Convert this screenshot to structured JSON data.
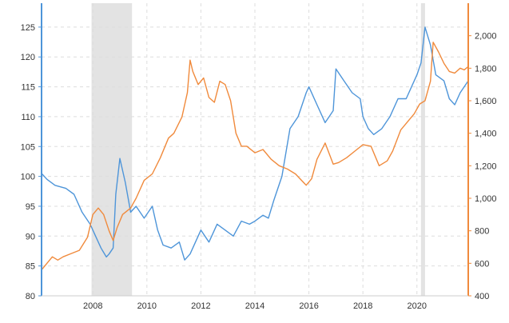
{
  "chart_data": {
    "type": "line",
    "title": "",
    "grid": true,
    "legend": "none",
    "x_axis": {
      "range": [
        2006.1,
        2021.9
      ],
      "ticks": [
        2008,
        2010,
        2012,
        2014,
        2016,
        2018,
        2020
      ],
      "tick_labels": [
        "2008",
        "2010",
        "2012",
        "2014",
        "2016",
        "2018",
        "2020"
      ]
    },
    "y_left": {
      "range": [
        80,
        129
      ],
      "ticks": [
        80,
        85,
        90,
        95,
        100,
        105,
        110,
        115,
        120,
        125
      ],
      "tick_labels": [
        "80",
        "85",
        "90",
        "95",
        "100",
        "105",
        "110",
        "115",
        "120",
        "125"
      ],
      "color": "#4e95d9"
    },
    "y_right": {
      "range": [
        400,
        2200
      ],
      "ticks": [
        400,
        600,
        800,
        1000,
        1200,
        1400,
        1600,
        1800,
        2000
      ],
      "tick_labels": [
        "400",
        "600",
        "800",
        "1,000",
        "1,200",
        "1,400",
        "1,600",
        "1,800",
        "2,000"
      ],
      "color": "#f08a3c"
    },
    "shaded_periods": [
      {
        "start": 2007.95,
        "end": 2009.45
      },
      {
        "start": 2020.15,
        "end": 2020.3
      }
    ],
    "series": [
      {
        "axis": "left",
        "color": "#4e95d9",
        "x": [
          2006.1,
          2006.3,
          2006.6,
          2007.0,
          2007.3,
          2007.6,
          2007.9,
          2008.1,
          2008.3,
          2008.5,
          2008.6,
          2008.75,
          2008.85,
          2009.0,
          2009.2,
          2009.4,
          2009.6,
          2009.9,
          2010.2,
          2010.4,
          2010.6,
          2010.9,
          2011.2,
          2011.4,
          2011.6,
          2011.8,
          2012.0,
          2012.3,
          2012.6,
          2012.9,
          2013.2,
          2013.5,
          2013.8,
          2014.0,
          2014.3,
          2014.5,
          2014.7,
          2015.0,
          2015.3,
          2015.6,
          2015.9,
          2016.0,
          2016.3,
          2016.6,
          2016.9,
          2017.0,
          2017.3,
          2017.6,
          2017.9,
          2018.0,
          2018.2,
          2018.4,
          2018.7,
          2019.0,
          2019.3,
          2019.6,
          2019.9,
          2020.0,
          2020.15,
          2020.3,
          2020.5,
          2020.7,
          2021.0,
          2021.2,
          2021.4,
          2021.6,
          2021.75,
          2021.9
        ],
        "values": [
          100.5,
          99.5,
          98.5,
          98,
          97,
          94,
          92,
          90,
          88,
          86.5,
          87,
          88,
          97,
          103,
          99,
          94,
          95,
          93,
          95,
          91,
          88.5,
          88,
          89,
          86,
          87,
          89,
          91,
          89,
          92,
          91,
          90,
          92.5,
          92,
          92.5,
          93.5,
          93,
          96,
          100,
          108,
          110,
          114,
          115,
          112,
          109,
          111,
          118,
          116,
          114,
          113,
          110,
          108,
          107,
          108,
          110,
          113,
          113,
          116,
          117,
          119,
          125,
          122,
          117,
          116,
          113,
          112,
          114,
          115,
          116
        ]
      },
      {
        "axis": "right",
        "color": "#f08a3c",
        "x": [
          2006.1,
          2006.3,
          2006.5,
          2006.7,
          2006.9,
          2007.2,
          2007.5,
          2007.8,
          2008.0,
          2008.2,
          2008.4,
          2008.6,
          2008.75,
          2008.9,
          2009.1,
          2009.4,
          2009.6,
          2009.9,
          2010.2,
          2010.5,
          2010.8,
          2011.0,
          2011.3,
          2011.5,
          2011.6,
          2011.7,
          2011.9,
          2012.1,
          2012.3,
          2012.5,
          2012.7,
          2012.9,
          2013.1,
          2013.3,
          2013.5,
          2013.7,
          2014.0,
          2014.3,
          2014.6,
          2014.9,
          2015.2,
          2015.5,
          2015.9,
          2016.1,
          2016.3,
          2016.6,
          2016.9,
          2017.1,
          2017.4,
          2017.7,
          2018.0,
          2018.3,
          2018.6,
          2018.9,
          2019.1,
          2019.4,
          2019.7,
          2019.9,
          2020.1,
          2020.3,
          2020.5,
          2020.6,
          2020.8,
          2021.0,
          2021.2,
          2021.4,
          2021.6,
          2021.75,
          2021.9
        ],
        "values": [
          560,
          600,
          640,
          620,
          640,
          660,
          680,
          760,
          900,
          940,
          900,
          800,
          740,
          820,
          900,
          940,
          1000,
          1110,
          1150,
          1250,
          1370,
          1400,
          1500,
          1650,
          1850,
          1780,
          1700,
          1740,
          1620,
          1590,
          1720,
          1700,
          1600,
          1400,
          1320,
          1320,
          1280,
          1300,
          1240,
          1200,
          1180,
          1150,
          1080,
          1120,
          1240,
          1340,
          1210,
          1220,
          1250,
          1290,
          1330,
          1320,
          1200,
          1230,
          1290,
          1420,
          1480,
          1520,
          1580,
          1600,
          1720,
          1960,
          1900,
          1830,
          1780,
          1770,
          1800,
          1790,
          1810
        ]
      }
    ]
  }
}
